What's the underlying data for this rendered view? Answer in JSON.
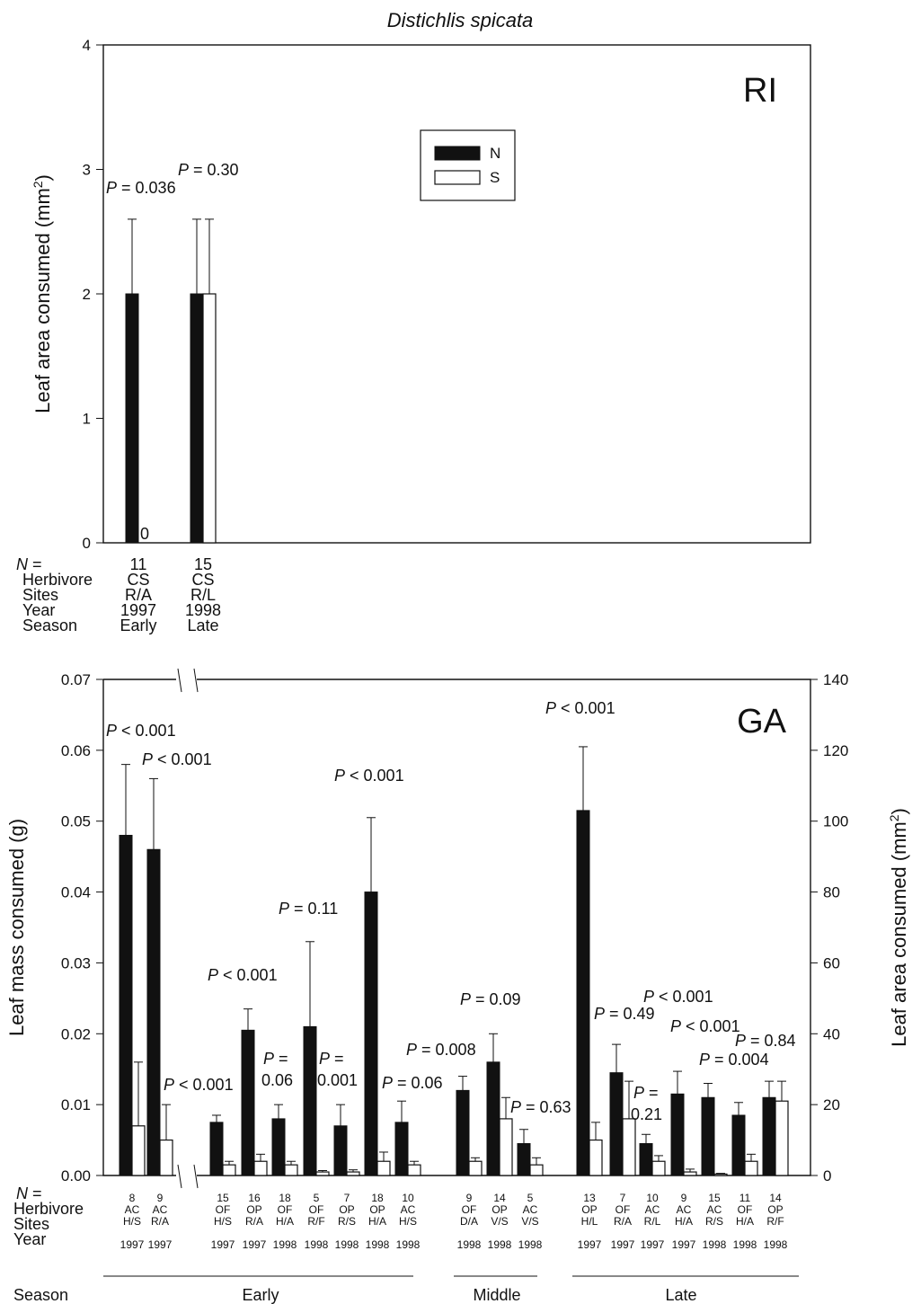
{
  "title": "Distichlis spicata",
  "legend": [
    {
      "key": "N",
      "label": "N",
      "fill": "#111111"
    },
    {
      "key": "S",
      "label": "S",
      "fill": "#ffffff"
    }
  ],
  "row_labels": [
    "N =",
    "Herbivore",
    "Sites",
    "Year",
    "Season"
  ],
  "chart_data": [
    {
      "type": "bar",
      "panel": "RI",
      "ylabel": "Leaf area consumed (mm²)",
      "ylim": [
        0,
        4
      ],
      "yticks": [
        "0",
        "1",
        "2",
        "3",
        "4"
      ],
      "groups": [
        {
          "n": "11",
          "herbivore": "CS",
          "sites": "R/A",
          "year": "1997",
          "season": "Early",
          "N": 2.0,
          "N_err": 0.6,
          "S": 0.0,
          "S_err": 0,
          "S_label": "0",
          "p": "0.036",
          "p_op": "="
        },
        {
          "n": "15",
          "herbivore": "CS",
          "sites": "R/L",
          "year": "1998",
          "season": "Late",
          "N": 2.0,
          "N_err": 0.6,
          "S": 2.0,
          "S_err": 0.6,
          "p": "0.30",
          "p_op": "="
        }
      ]
    },
    {
      "type": "bar",
      "panel": "GA",
      "ylabel": "Leaf mass consumed (g)",
      "ylabel_right": "Leaf area consumed (mm²)",
      "ylim": [
        0,
        0.07
      ],
      "ylim_right": [
        0,
        140
      ],
      "yticks": [
        "0.00",
        "0.01",
        "0.02",
        "0.03",
        "0.04",
        "0.05",
        "0.06",
        "0.07"
      ],
      "yticks_right": [
        "0",
        "20",
        "40",
        "60",
        "80",
        "100",
        "120",
        "140"
      ],
      "seasons": [
        "Early",
        "Middle",
        "Late"
      ],
      "groups": [
        {
          "n": "8",
          "herbivore": "AC",
          "sites": "H/S",
          "year": "1997",
          "N": 0.048,
          "N_err": 0.01,
          "S": 0.007,
          "S_err": 0.009,
          "p": "0.001",
          "p_op": "<"
        },
        {
          "n": "9",
          "herbivore": "AC",
          "sites": "R/A",
          "year": "1997",
          "N": 0.046,
          "N_err": 0.01,
          "S": 0.005,
          "S_err": 0.005,
          "p": "0.001",
          "p_op": "<"
        },
        {
          "n": "15",
          "herbivore": "OF",
          "sites": "H/S",
          "year": "1997",
          "N": 0.0075,
          "N_err": 0.001,
          "S": 0.0015,
          "S_err": 0.0005,
          "p": "0.001",
          "p_op": "<"
        },
        {
          "n": "16",
          "herbivore": "OP",
          "sites": "R/A",
          "year": "1997",
          "N": 0.0205,
          "N_err": 0.003,
          "S": 0.002,
          "S_err": 0.001,
          "p": "0.001",
          "p_op": "<"
        },
        {
          "n": "18",
          "herbivore": "OF",
          "sites": "H/A",
          "year": "1998",
          "N": 0.008,
          "N_err": 0.002,
          "S": 0.0015,
          "S_err": 0.0005,
          "p": "0.06",
          "p_op": "="
        },
        {
          "n": "5",
          "herbivore": "OF",
          "sites": "R/F",
          "year": "1998",
          "N": 0.021,
          "N_err": 0.012,
          "S": 0.0005,
          "S_err": 0.0002,
          "p": "0.11",
          "p_op": "="
        },
        {
          "n": "7",
          "herbivore": "OP",
          "sites": "R/S",
          "year": "1998",
          "N": 0.007,
          "N_err": 0.003,
          "S": 0.0005,
          "S_err": 0.0003,
          "p": "0.001",
          "p_op": "="
        },
        {
          "n": "18",
          "herbivore": "OP",
          "sites": "H/A",
          "year": "1998",
          "N": 0.04,
          "N_err": 0.0105,
          "S": 0.002,
          "S_err": 0.0013,
          "p": "0.001",
          "p_op": "<"
        },
        {
          "n": "10",
          "herbivore": "AC",
          "sites": "H/S",
          "year": "1998",
          "N": 0.0075,
          "N_err": 0.003,
          "S": 0.0015,
          "S_err": 0.0005,
          "p": "0.06",
          "p_op": "="
        },
        {
          "n": "9",
          "herbivore": "OF",
          "sites": "D/A",
          "year": "1998",
          "N": 0.012,
          "N_err": 0.002,
          "S": 0.002,
          "S_err": 0.0005,
          "p": "0.008",
          "p_op": "="
        },
        {
          "n": "14",
          "herbivore": "OP",
          "sites": "V/S",
          "year": "1998",
          "N": 0.016,
          "N_err": 0.004,
          "S": 0.008,
          "S_err": 0.003,
          "p": "0.09",
          "p_op": "="
        },
        {
          "n": "5",
          "herbivore": "AC",
          "sites": "V/S",
          "year": "1998",
          "N": 0.0045,
          "N_err": 0.002,
          "S": 0.0015,
          "S_err": 0.001,
          "p": "0.63",
          "p_op": "="
        },
        {
          "n": "13",
          "herbivore": "OP",
          "sites": "H/L",
          "year": "1997",
          "N": 0.0515,
          "N_err": 0.009,
          "S": 0.005,
          "S_err": 0.0025,
          "p": "0.001",
          "p_op": "<"
        },
        {
          "n": "7",
          "herbivore": "OF",
          "sites": "R/A",
          "year": "1997",
          "N": 0.0145,
          "N_err": 0.004,
          "S": 0.008,
          "S_err": 0.0053,
          "p": "0.49",
          "p_op": "="
        },
        {
          "n": "10",
          "herbivore": "AC",
          "sites": "R/L",
          "year": "1997",
          "N": 0.0045,
          "N_err": 0.0013,
          "S": 0.002,
          "S_err": 0.0008,
          "p": "0.21",
          "p_op": "="
        },
        {
          "n": "9",
          "herbivore": "AC",
          "sites": "H/A",
          "year": "1997",
          "N": 0.0115,
          "N_err": 0.0032,
          "S": 0.0005,
          "S_err": 0.0004,
          "p": "0.001",
          "p_op": "<"
        },
        {
          "n": "15",
          "herbivore": "AC",
          "sites": "R/S",
          "year": "1998",
          "N": 0.011,
          "N_err": 0.002,
          "S": 0.0002,
          "S_err": 0.0001,
          "p": "0.001",
          "p_op": "<"
        },
        {
          "n": "11",
          "herbivore": "OF",
          "sites": "H/A",
          "year": "1998",
          "N": 0.0085,
          "N_err": 0.0018,
          "S": 0.002,
          "S_err": 0.001,
          "p": "0.004",
          "p_op": "="
        },
        {
          "n": "14",
          "herbivore": "OP",
          "sites": "R/F",
          "year": "1998",
          "N": 0.011,
          "N_err": 0.0023,
          "S": 0.0105,
          "S_err": 0.0028,
          "p": "0.84",
          "p_op": "="
        }
      ]
    }
  ]
}
